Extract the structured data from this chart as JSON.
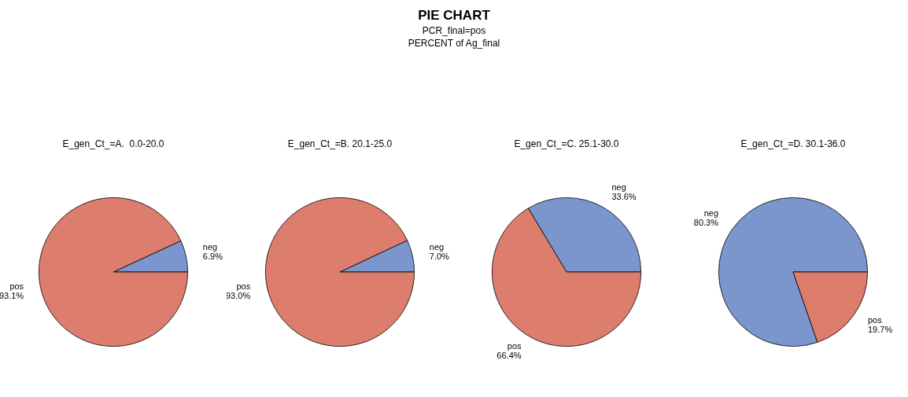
{
  "chart_data": [
    {
      "type": "other",
      "title": "PIE CHART",
      "subtitle": "PCR_final=pos",
      "annotations": [
        "PERCENT of Ag_final"
      ]
    },
    {
      "type": "pie",
      "title": "E_gen_Ct_=A.  0.0-20.0",
      "categories": [
        "neg",
        "pos"
      ],
      "values": [
        6.9,
        93.1
      ],
      "colors": [
        "#7b96cc",
        "#dd7d6d"
      ],
      "value_labels": [
        "6.9%",
        "93.1%"
      ]
    },
    {
      "type": "pie",
      "title": "E_gen_Ct_=B. 20.1-25.0",
      "categories": [
        "neg",
        "pos"
      ],
      "values": [
        7.0,
        93.0
      ],
      "colors": [
        "#7b96cc",
        "#dd7d6d"
      ],
      "value_labels": [
        "7.0%",
        "93.0%"
      ]
    },
    {
      "type": "pie",
      "title": "E_gen_Ct_=C. 25.1-30.0",
      "categories": [
        "neg",
        "pos"
      ],
      "values": [
        33.6,
        66.4
      ],
      "colors": [
        "#7b96cc",
        "#dd7d6d"
      ],
      "value_labels": [
        "33.6%",
        "66.4%"
      ]
    },
    {
      "type": "pie",
      "title": "E_gen_Ct_=D. 30.1-36.0",
      "categories": [
        "neg",
        "pos"
      ],
      "values": [
        80.3,
        19.7
      ],
      "colors": [
        "#7b96cc",
        "#dd7d6d"
      ],
      "value_labels": [
        "80.3%",
        "19.7%"
      ]
    }
  ]
}
